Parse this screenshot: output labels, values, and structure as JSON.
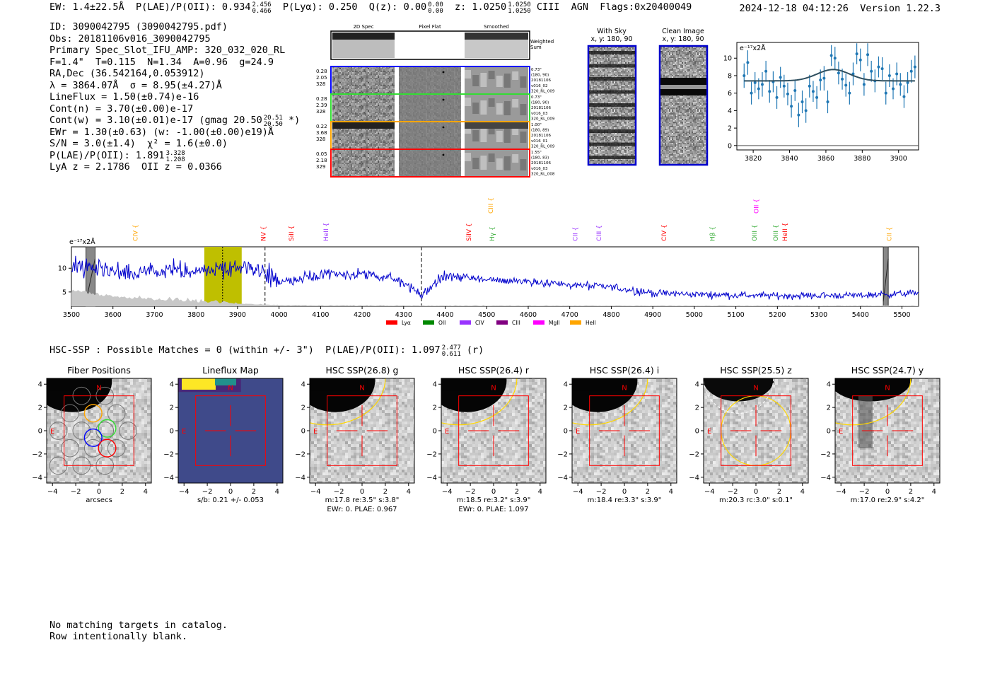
{
  "header": {
    "ew": "EW: 1.4±22.5Å",
    "plae_label": "P(LAE)/P(OII): 0.934",
    "plae_hi": "2.456",
    "plae_lo": "0.466",
    "plya": "P(Lyα): 0.250",
    "qz_label": "Q(z): 0.00",
    "qz_hi": "0.00",
    "qz_lo": "0.00",
    "z_label": "z: 1.0250",
    "z_hi": "1.0250",
    "z_lo": "1.0250",
    "tail": "CIII  AGN  Flags:0x20400049",
    "timestamp": "2024-12-18 04:12:26",
    "version": "Version 1.22.3"
  },
  "info": {
    "id": "ID: 3090042795 (3090042795.pdf)",
    "obs": "Obs: 20181106v016_3090042795",
    "primary": "Primary Spec_Slot_IFU_AMP: 320_032_020_RL",
    "fit": "F=1.4\"  T=0.115  N=1.34  A=0.96  g=24.9",
    "radec": "RA,Dec (36.542164,0.053912)",
    "lambda": "λ = 3864.07Å  σ = 8.95(±4.27)Å",
    "lineflux": "LineFlux = 1.50(±0.74)e-16",
    "contn": "Cont(n) = 3.70(±0.00)e-17",
    "contw": "Cont(w) = 3.10(±0.01)e-17 (gmag 20.50",
    "contw_hi": "20.51",
    "contw_lo": "20.50",
    "contw_tail": "*)",
    "ewr": "EWr = 1.30(±0.63) (w: -1.00(±0.00)e19)Å",
    "sn": "S/N = 3.0(±1.4)  χ² = 1.6(±0.0)",
    "plae": "P(LAE)/P(OII): 1.891",
    "plae_hi": "3.328",
    "plae_lo": "1.208",
    "lya": "LyA z = 2.1786  OII z = 0.0366"
  },
  "spec2d": {
    "col_titles": [
      "2D Spec",
      "Pixel Flat",
      "Smoothed"
    ],
    "weighted": "Weighted Sum",
    "rows": [
      {
        "color": "#0000ff",
        "left": [
          "0.28",
          "2.05",
          "328"
        ],
        "right": [
          "0.73\"",
          "(180, 90)",
          "20181106",
          "v016_02",
          "320_RL_009"
        ]
      },
      {
        "color": "#33dd33",
        "left": [
          "0.28",
          "2.39",
          "328"
        ],
        "right": [
          "0.73\"",
          "(180, 90)",
          "20181106",
          "v016_03",
          "320_RL_009"
        ]
      },
      {
        "color": "#ffa500",
        "left": [
          "0.22",
          "3.68",
          "328"
        ],
        "right": [
          "1.00\"",
          "(180, 89)",
          "20181106",
          "v016_01",
          "320_RL_009"
        ]
      },
      {
        "color": "#ff0000",
        "left": [
          "0.05",
          "2.18",
          "329"
        ],
        "right": [
          "1.55\"",
          "(180, 83)",
          "20181106",
          "v016_03",
          "320_RL_008"
        ]
      }
    ]
  },
  "sky": {
    "with_sky": "With Sky",
    "with_sky_xy": "x, y: 180, 90",
    "clean": "Clean Image",
    "clean_xy": "x, y: 180, 90"
  },
  "zoom_chart": {
    "unit": "e⁻¹⁷x2Å",
    "xticks": [
      "3820",
      "3840",
      "3860",
      "3880",
      "3900"
    ],
    "yticks": [
      "0",
      "2",
      "4",
      "6",
      "8",
      "10"
    ]
  },
  "full_spectrum": {
    "unit": "e⁻¹⁷x2Å",
    "xticks": [
      "3500",
      "3600",
      "3700",
      "3800",
      "3900",
      "4000",
      "4100",
      "4200",
      "4300",
      "4400",
      "4500",
      "4600",
      "4700",
      "4800",
      "4900",
      "5000",
      "5100",
      "5200",
      "5300",
      "5400",
      "5500"
    ],
    "yticks": [
      "5",
      "10"
    ],
    "line_labels": [
      {
        "text": "CIV",
        "color": "#ffa500",
        "w": 3654,
        "row": 1
      },
      {
        "text": "NV",
        "color": "#ff0000",
        "w": 3962,
        "row": 1
      },
      {
        "text": "SiII",
        "color": "#ff0000",
        "w": 4030,
        "row": 1
      },
      {
        "text": "HeII",
        "color": "#9933ff",
        "w": 4113,
        "row": 1
      },
      {
        "text": "SiIV",
        "color": "#ff0000",
        "w": 4457,
        "row": 1
      },
      {
        "text": "CIII",
        "color": "#ffa500",
        "w": 4510,
        "row": 0
      },
      {
        "text": "Hγ",
        "color": "#33aa33",
        "w": 4513,
        "row": 1
      },
      {
        "text": "CII",
        "color": "#9933ff",
        "w": 4713,
        "row": 1
      },
      {
        "text": "CIII",
        "color": "#9933ff",
        "w": 4770,
        "row": 1
      },
      {
        "text": "CIV",
        "color": "#ff0000",
        "w": 4927,
        "row": 1
      },
      {
        "text": "Hβ",
        "color": "#33aa33",
        "w": 5044,
        "row": 1
      },
      {
        "text": "OII",
        "color": "#ff00ff",
        "w": 5149,
        "row": 0
      },
      {
        "text": "OIII",
        "color": "#33aa33",
        "w": 5145,
        "row": 1
      },
      {
        "text": "OIII",
        "color": "#33aa33",
        "w": 5196,
        "row": 1
      },
      {
        "text": "HeII",
        "color": "#ff0000",
        "w": 5218,
        "row": 1
      },
      {
        "text": "CII",
        "color": "#ffa500",
        "w": 5469,
        "row": 1
      }
    ],
    "legend": [
      {
        "name": "Lyα",
        "color": "#ff0000"
      },
      {
        "name": "OII",
        "color": "#008800"
      },
      {
        "name": "CIV",
        "color": "#9933ff"
      },
      {
        "name": "CIII",
        "color": "#800080"
      },
      {
        "name": "MgII",
        "color": "#ff00ff"
      },
      {
        "name": "HeII",
        "color": "#ffa500"
      }
    ]
  },
  "chart_data": [
    {
      "type": "scatter",
      "title": "",
      "xlabel": "",
      "ylabel": "e⁻¹⁷x2Å",
      "xlim": [
        3811,
        3911
      ],
      "ylim": [
        -0.5,
        11.8
      ],
      "series": [
        {
          "x": [
            3815,
            3817,
            3819,
            3821,
            3823,
            3825,
            3827,
            3829,
            3831,
            3833,
            3835,
            3837,
            3839,
            3841,
            3843,
            3845,
            3847,
            3849,
            3851,
            3853,
            3855,
            3857,
            3859,
            3861,
            3863,
            3865,
            3867,
            3869,
            3871,
            3873,
            3875,
            3877,
            3879,
            3881,
            3883,
            3885,
            3887,
            3889,
            3891,
            3893,
            3895,
            3897,
            3899,
            3901,
            3903,
            3905,
            3907,
            3909
          ],
          "y": [
            8.0,
            9.5,
            6.0,
            7.2,
            6.5,
            7.0,
            8.5,
            6.2,
            7.3,
            5.5,
            7.8,
            6.8,
            5.9,
            4.5,
            6.3,
            3.5,
            5.0,
            4.0,
            6.8,
            6.2,
            5.5,
            7.5,
            7.7,
            5.0,
            10.3,
            10.0,
            8.3,
            7.6,
            6.9,
            6.0,
            8.2,
            10.5,
            9.8,
            7.0,
            10.4,
            8.5,
            7.4,
            9.0,
            8.8,
            6.0,
            8.0,
            6.5,
            8.2,
            7.0,
            5.6,
            7.2,
            8.5,
            9.0
          ],
          "err": [
            1.4,
            1.4,
            1.3,
            1.2,
            1.2,
            1.4,
            1.2,
            1.3,
            1.2,
            1.3,
            1.2,
            1.3,
            1.3,
            1.3,
            1.2,
            1.4,
            1.3,
            1.4,
            1.3,
            1.2,
            1.3,
            1.2,
            1.4,
            1.3,
            1.2,
            1.3,
            1.3,
            1.2,
            1.3,
            1.3,
            1.3,
            1.2,
            1.3,
            1.3,
            1.3,
            1.2,
            1.3,
            1.2,
            1.3,
            1.3,
            1.3,
            1.2,
            1.3,
            1.3,
            1.3,
            1.2,
            1.3,
            1.3
          ]
        },
        {
          "name": "fit",
          "gauss": {
            "continuum": 7.4,
            "amp": 1.3,
            "mu": 3864.07,
            "sigma": 8.95
          }
        }
      ]
    },
    {
      "type": "line",
      "title": "",
      "xlabel": "",
      "ylabel": "e⁻¹⁷x2Å",
      "xlim": [
        3500,
        5540
      ],
      "ylim": [
        2,
        14.5
      ],
      "highlight_band": [
        3820,
        3910
      ],
      "marker_line": 3864,
      "dashed_lines": [
        3966,
        4343
      ],
      "series": [
        {
          "name": "flux",
          "color": "#0000cc",
          "x_start": 3500,
          "x_end": 5540,
          "anchors": [
            [
              3500,
              11
            ],
            [
              3600,
              9
            ],
            [
              3700,
              9
            ],
            [
              3800,
              9.5
            ],
            [
              3860,
              9.8
            ],
            [
              3950,
              10
            ],
            [
              4000,
              7
            ],
            [
              4100,
              8.5
            ],
            [
              4200,
              8.8
            ],
            [
              4300,
              7.2
            ],
            [
              4343,
              4.3
            ],
            [
              4400,
              8.5
            ],
            [
              4500,
              7.5
            ],
            [
              4600,
              7.3
            ],
            [
              4700,
              6.5
            ],
            [
              4800,
              6
            ],
            [
              4900,
              4.8
            ],
            [
              5000,
              4.5
            ],
            [
              5200,
              4.2
            ],
            [
              5400,
              4.3
            ],
            [
              5540,
              4.8
            ]
          ]
        },
        {
          "name": "sky",
          "color": "#bbbbbb",
          "anchors": [
            [
              3500,
              5
            ],
            [
              3600,
              3.8
            ],
            [
              3700,
              3.2
            ],
            [
              3800,
              2.8
            ],
            [
              3900,
              2.5
            ],
            [
              4000,
              2.2
            ],
            [
              4200,
              2.1
            ],
            [
              5540,
              2.05
            ]
          ]
        }
      ]
    }
  ],
  "hsc": {
    "header": "HSC-SSP : Possible Matches = 0 (within +/- 3\")  P(LAE)/P(OII): 1.097",
    "hi": "2.477",
    "lo": "0.611",
    "band": "(r)",
    "xticks": [
      "−4",
      "−2",
      "0",
      "2",
      "4"
    ],
    "yticks": [
      "4",
      "2",
      "0",
      "−2",
      "−4"
    ],
    "panels": [
      {
        "title": "Fiber Positions",
        "caption": [
          "arcsecs"
        ],
        "kind": "fiber"
      },
      {
        "title": "Lineflux Map",
        "caption": [
          "s/b: 0.21 +/- 0.053"
        ],
        "kind": "flux"
      },
      {
        "title": "HSC SSP(26.8) g",
        "caption": [
          "m:17.8  re:3.5\"  s:3.8\"",
          "EWr: 0, PLAE: 0.967"
        ],
        "kind": "img",
        "blob": "big"
      },
      {
        "title": "HSC SSP(26.4) r",
        "caption": [
          "m:18.5  re:3.2\"  s:3.9\"",
          "EWr: 0, PLAE: 1.097"
        ],
        "kind": "img",
        "blob": "big"
      },
      {
        "title": "HSC SSP(26.4) i",
        "caption": [
          "m:18.4  re:3.3\"  s:3.9\""
        ],
        "kind": "img",
        "blob": "big"
      },
      {
        "title": "HSC SSP(25.5) z",
        "caption": [
          "m:20.3  rc:3.0\"  s:0.1\""
        ],
        "kind": "img",
        "blob": "z"
      },
      {
        "title": "HSC SSP(24.7) y",
        "caption": [
          "m:17.0  re:2.9\"  s:4.2\""
        ],
        "kind": "img",
        "blob": "y"
      }
    ],
    "n_label": "N",
    "e_label": "E"
  },
  "footer": {
    "line1": "No matching targets in catalog.",
    "line2": "Row intentionally blank."
  }
}
